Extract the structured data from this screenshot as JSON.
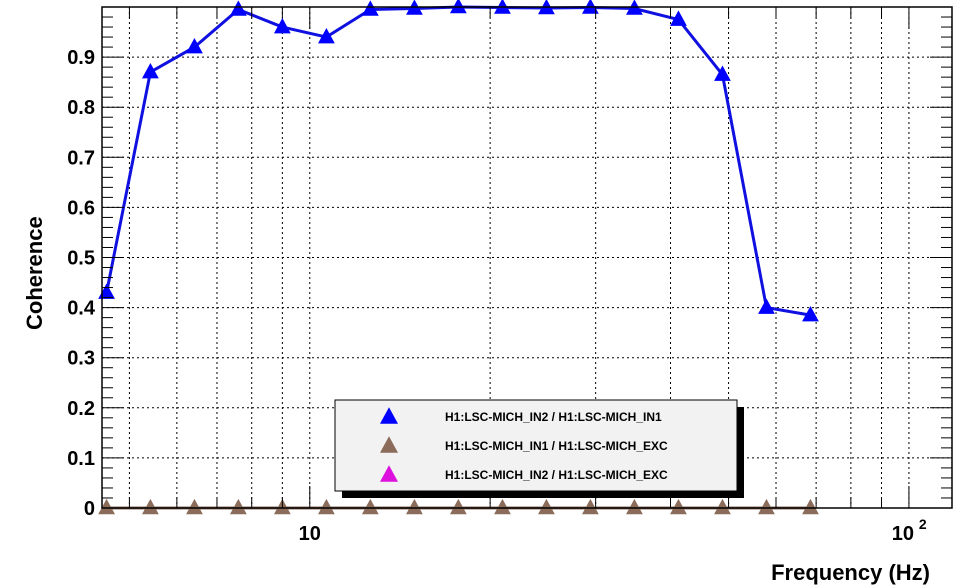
{
  "chart_data": {
    "type": "line",
    "xlabel": "Frequency (Hz)",
    "ylabel": "Coherence",
    "x_scale": "log",
    "xlim": [
      4.5,
      118
    ],
    "ylim": [
      0,
      1.0
    ],
    "grid": true,
    "legend_position": "bottom-center",
    "y_ticks": [
      "0",
      "0.1",
      "0.2",
      "0.3",
      "0.4",
      "0.5",
      "0.6",
      "0.7",
      "0.8",
      "0.9"
    ],
    "y_tick_values": [
      0,
      0.1,
      0.2,
      0.3,
      0.4,
      0.5,
      0.6,
      0.7,
      0.8,
      0.9
    ],
    "x_tick_labels": [
      {
        "value": 10,
        "label": "10"
      },
      {
        "value": 100,
        "label": "10",
        "sup": "2"
      }
    ],
    "series": [
      {
        "name": "H1:LSC-MICH_IN2 / H1:LSC-MICH_IN1",
        "color": "#0000ff",
        "line_color": "#1010e0",
        "x": [
          4.58,
          5.42,
          6.42,
          7.6,
          9.0,
          10.66,
          12.62,
          14.95,
          17.7,
          20.97,
          24.83,
          29.4,
          34.82,
          41.24,
          48.84,
          57.84,
          68.5,
          81.1,
          96.1
        ],
        "y": [
          0.43,
          0.87,
          0.92,
          0.995,
          0.96,
          0.94,
          0.995,
          0.997,
          1.0,
          0.999,
          0.998,
          0.999,
          0.997,
          0.975,
          0.865,
          0.4,
          0.385,
          null,
          null
        ]
      },
      {
        "name": "H1:LSC-MICH_IN1 / H1:LSC-MICH_EXC",
        "color": "#8b6b5a",
        "line_color": "#8b6b5a",
        "x": [
          4.58,
          5.42,
          6.42,
          7.6,
          9.0,
          10.66,
          12.62,
          14.95,
          17.7,
          20.97,
          24.83,
          29.4,
          34.82,
          41.24,
          48.84,
          57.84,
          68.5,
          81.1,
          96.1
        ],
        "y": [
          0,
          0,
          0,
          0,
          0,
          0,
          0,
          0,
          0,
          0,
          0,
          0,
          0,
          0,
          0,
          0,
          0,
          null,
          null
        ]
      },
      {
        "name": "H1:LSC-MICH_IN2 / H1:LSC-MICH_EXC",
        "color": "#dd11dd",
        "line_color": "#dd11dd",
        "x": [],
        "y": []
      }
    ]
  }
}
